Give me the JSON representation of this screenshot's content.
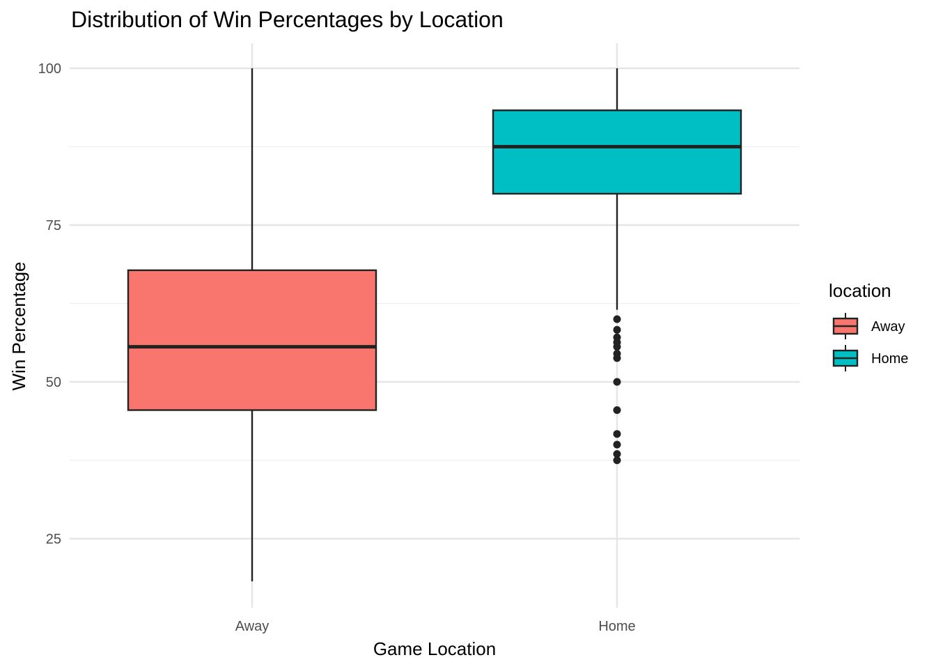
{
  "chart_data": {
    "type": "boxplot",
    "title": "Distribution of Win Percentages by Location",
    "xlabel": "Game Location",
    "ylabel": "Win Percentage",
    "ylim": [
      14,
      104
    ],
    "yticks": [
      25,
      50,
      75,
      100
    ],
    "categories": [
      "Away",
      "Home"
    ],
    "grid": true,
    "legend": {
      "title": "location",
      "position": "right",
      "entries": [
        "Away",
        "Home"
      ]
    },
    "series": [
      {
        "category": "Away",
        "color": "#F8766D",
        "whisker_low": 18.2,
        "q1": 45.5,
        "median": 55.6,
        "q3": 67.8,
        "whisker_high": 100,
        "outliers": []
      },
      {
        "category": "Home",
        "color": "#00BFC4",
        "whisker_low": 61.5,
        "q1": 80,
        "median": 87.5,
        "q3": 93.3,
        "whisker_high": 100,
        "outliers": [
          60,
          58.3,
          57.1,
          56.3,
          55.6,
          54.5,
          53.8,
          50,
          45.5,
          41.7,
          40,
          38.5,
          37.5
        ]
      }
    ]
  }
}
